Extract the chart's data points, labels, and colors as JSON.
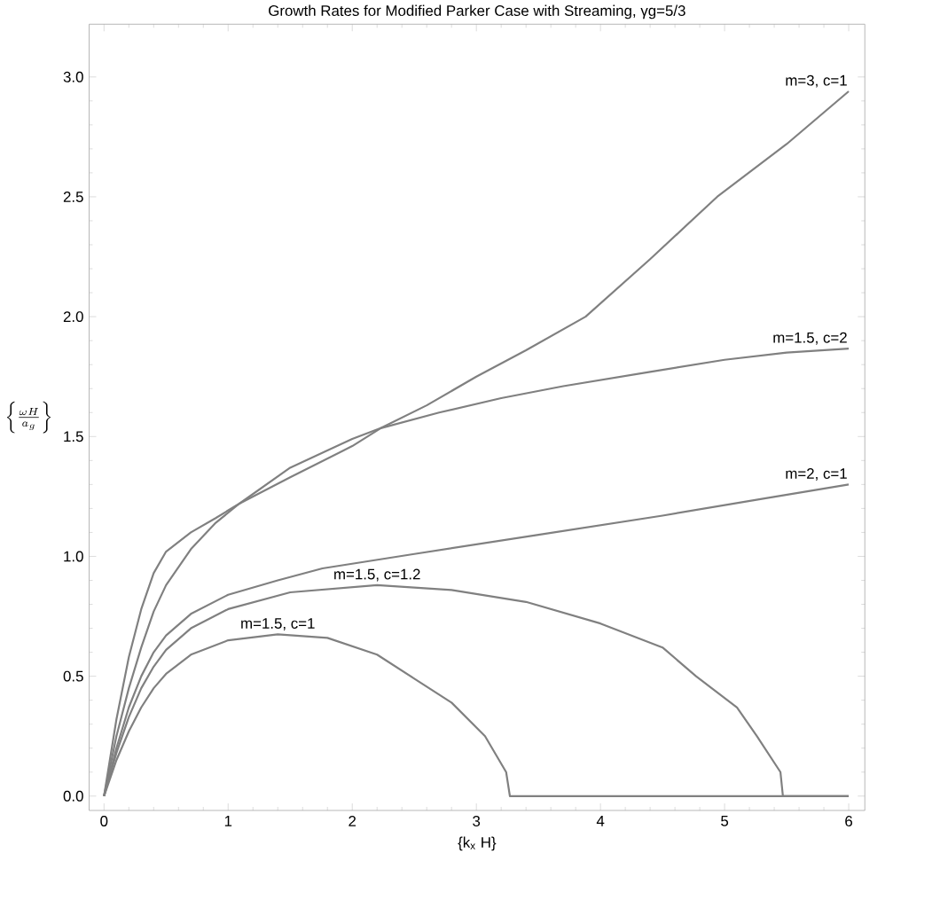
{
  "chart_data": {
    "type": "line",
    "title": "Growth Rates for Modified Parker Case with Streaming, γg=5/3",
    "xlabel": "{k$_{x}$ H}",
    "ylabel": "\\left\\{\\frac{\\omega H}{a_g}\\right\\}",
    "xlim": [
      -0.12,
      6.13
    ],
    "ylim": [
      -0.06,
      3.22
    ],
    "grid": false,
    "xticks": [
      0,
      1,
      2,
      3,
      4,
      5,
      6
    ],
    "yticks": [
      {
        "value": 0,
        "label": "0.0"
      },
      {
        "value": 0.5,
        "label": "0.5"
      },
      {
        "value": 1,
        "label": "1.0"
      },
      {
        "value": 1.5,
        "label": "1.5"
      },
      {
        "value": 2,
        "label": "2.0"
      },
      {
        "value": 2.5,
        "label": "2.5"
      },
      {
        "value": 3,
        "label": "3.0"
      }
    ],
    "series": [
      {
        "name": "m=3, c=1",
        "color": "#808080",
        "x": [
          0,
          0.1,
          0.2,
          0.3,
          0.4,
          0.5,
          0.7,
          0.9,
          1.09,
          1.5,
          2.0,
          2.23,
          2.6,
          3.0,
          3.4,
          3.88,
          4.4,
          4.94,
          5.5,
          6
        ],
        "values": [
          0,
          0.32,
          0.58,
          0.78,
          0.93,
          1.02,
          1.1,
          1.16,
          1.22,
          1.33,
          1.46,
          1.535,
          1.63,
          1.75,
          1.86,
          2.0,
          2.24,
          2.5,
          2.72,
          2.94
        ]
      },
      {
        "name": "m=1.5, c=2",
        "color": "#808080",
        "x": [
          0,
          0.1,
          0.2,
          0.3,
          0.4,
          0.5,
          0.7,
          0.9,
          1.09,
          1.5,
          2.0,
          2.23,
          2.7,
          3.2,
          3.7,
          4.4,
          5.0,
          5.5,
          6
        ],
        "values": [
          0,
          0.25,
          0.45,
          0.62,
          0.77,
          0.88,
          1.03,
          1.14,
          1.22,
          1.37,
          1.49,
          1.535,
          1.6,
          1.66,
          1.71,
          1.77,
          1.82,
          1.85,
          1.867
        ]
      },
      {
        "name": "m=2, c=1",
        "color": "#808080",
        "x": [
          0,
          0.1,
          0.2,
          0.3,
          0.4,
          0.5,
          0.7,
          1.0,
          1.4,
          1.76,
          2.5,
          3.5,
          4.5,
          5.3,
          6
        ],
        "values": [
          0,
          0.2,
          0.37,
          0.5,
          0.6,
          0.67,
          0.76,
          0.84,
          0.9,
          0.95,
          1.01,
          1.09,
          1.17,
          1.24,
          1.3
        ]
      },
      {
        "name": "m=1.5, c=1.2",
        "color": "#808080",
        "x": [
          0,
          0.1,
          0.2,
          0.3,
          0.4,
          0.5,
          0.7,
          1.0,
          1.5,
          2.2,
          2.8,
          3.4,
          4.0,
          4.5,
          4.77,
          5.1,
          5.26,
          5.45,
          5.47,
          6
        ],
        "values": [
          0,
          0.18,
          0.33,
          0.45,
          0.54,
          0.61,
          0.7,
          0.78,
          0.85,
          0.88,
          0.86,
          0.81,
          0.72,
          0.62,
          0.5,
          0.37,
          0.25,
          0.1,
          0,
          0
        ]
      },
      {
        "name": "m=1.5, c=1",
        "color": "#808080",
        "x": [
          0,
          0.1,
          0.2,
          0.3,
          0.4,
          0.5,
          0.7,
          1.0,
          1.4,
          1.8,
          2.2,
          2.5,
          2.8,
          3.07,
          3.24,
          3.27,
          6
        ],
        "values": [
          0,
          0.15,
          0.27,
          0.37,
          0.45,
          0.51,
          0.59,
          0.65,
          0.675,
          0.66,
          0.59,
          0.49,
          0.39,
          0.25,
          0.1,
          0,
          0
        ]
      }
    ]
  }
}
